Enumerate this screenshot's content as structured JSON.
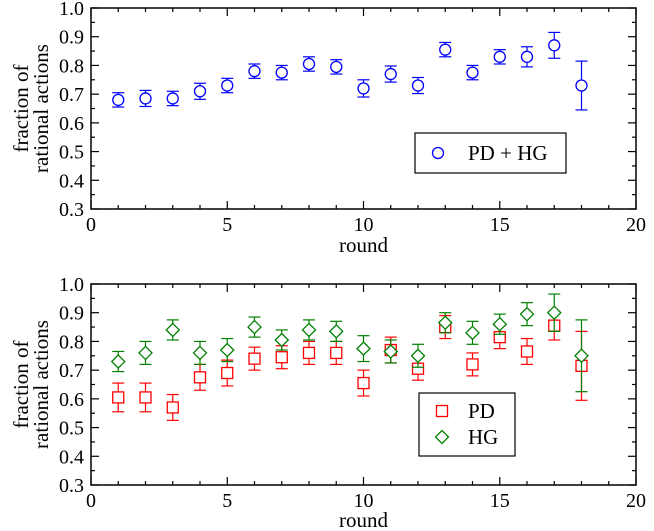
{
  "chart_data": [
    {
      "type": "scatter",
      "title": "",
      "xlabel": "round",
      "ylabel_lines": [
        "fraction of",
        "rational actions"
      ],
      "xlim": [
        0,
        20
      ],
      "ylim": [
        0.3,
        1.0
      ],
      "xticks": [
        0,
        5,
        10,
        15,
        20
      ],
      "yticks": [
        0.3,
        0.4,
        0.5,
        0.6,
        0.7,
        0.8,
        0.9,
        1.0
      ],
      "xtick_labels": [
        "0",
        "5",
        "10",
        "15",
        "20"
      ],
      "ytick_labels": [
        "0.3",
        "0.4",
        "0.5",
        "0.6",
        "0.7",
        "0.8",
        "0.9",
        "1.0"
      ],
      "grid": false,
      "legend_position": "center-right",
      "series": [
        {
          "name": "PD + HG",
          "marker": "circle",
          "color": "#0000ff",
          "x": [
            1,
            2,
            3,
            4,
            5,
            6,
            7,
            8,
            9,
            10,
            11,
            12,
            13,
            14,
            15,
            16,
            17,
            18
          ],
          "values": [
            0.68,
            0.685,
            0.685,
            0.71,
            0.73,
            0.78,
            0.775,
            0.805,
            0.795,
            0.72,
            0.77,
            0.73,
            0.855,
            0.775,
            0.83,
            0.83,
            0.87,
            0.73
          ],
          "err": [
            0.025,
            0.028,
            0.025,
            0.028,
            0.025,
            0.025,
            0.025,
            0.025,
            0.025,
            0.03,
            0.028,
            0.028,
            0.025,
            0.025,
            0.025,
            0.035,
            0.045,
            0.085
          ]
        }
      ]
    },
    {
      "type": "scatter",
      "title": "",
      "xlabel": "round",
      "ylabel_lines": [
        "fraction of",
        "rational actions"
      ],
      "xlim": [
        0,
        20
      ],
      "ylim": [
        0.3,
        1.0
      ],
      "xticks": [
        0,
        5,
        10,
        15,
        20
      ],
      "yticks": [
        0.3,
        0.4,
        0.5,
        0.6,
        0.7,
        0.8,
        0.9,
        1.0
      ],
      "xtick_labels": [
        "0",
        "5",
        "10",
        "15",
        "20"
      ],
      "ytick_labels": [
        "0.3",
        "0.4",
        "0.5",
        "0.6",
        "0.7",
        "0.8",
        "0.9",
        "1.0"
      ],
      "grid": false,
      "legend_position": "bottom-right",
      "series": [
        {
          "name": "PD",
          "marker": "square",
          "color": "#ff0000",
          "x": [
            1,
            2,
            3,
            4,
            5,
            6,
            7,
            8,
            9,
            10,
            11,
            12,
            13,
            14,
            15,
            16,
            17,
            18
          ],
          "values": [
            0.605,
            0.605,
            0.57,
            0.675,
            0.69,
            0.74,
            0.745,
            0.76,
            0.76,
            0.655,
            0.77,
            0.705,
            0.85,
            0.72,
            0.815,
            0.765,
            0.855,
            0.715
          ],
          "err": [
            0.05,
            0.05,
            0.045,
            0.045,
            0.045,
            0.04,
            0.04,
            0.04,
            0.04,
            0.045,
            0.045,
            0.04,
            0.04,
            0.04,
            0.04,
            0.045,
            0.05,
            0.12
          ]
        },
        {
          "name": "HG",
          "marker": "diamond",
          "color": "#008000",
          "x": [
            1,
            2,
            3,
            4,
            5,
            6,
            7,
            8,
            9,
            10,
            11,
            12,
            13,
            14,
            15,
            16,
            17,
            18
          ],
          "values": [
            0.73,
            0.76,
            0.84,
            0.76,
            0.77,
            0.85,
            0.805,
            0.84,
            0.835,
            0.775,
            0.765,
            0.75,
            0.865,
            0.83,
            0.86,
            0.895,
            0.9,
            0.75
          ],
          "err": [
            0.035,
            0.04,
            0.035,
            0.04,
            0.04,
            0.035,
            0.035,
            0.035,
            0.035,
            0.045,
            0.04,
            0.04,
            0.035,
            0.04,
            0.035,
            0.04,
            0.065,
            0.125
          ]
        }
      ]
    }
  ]
}
